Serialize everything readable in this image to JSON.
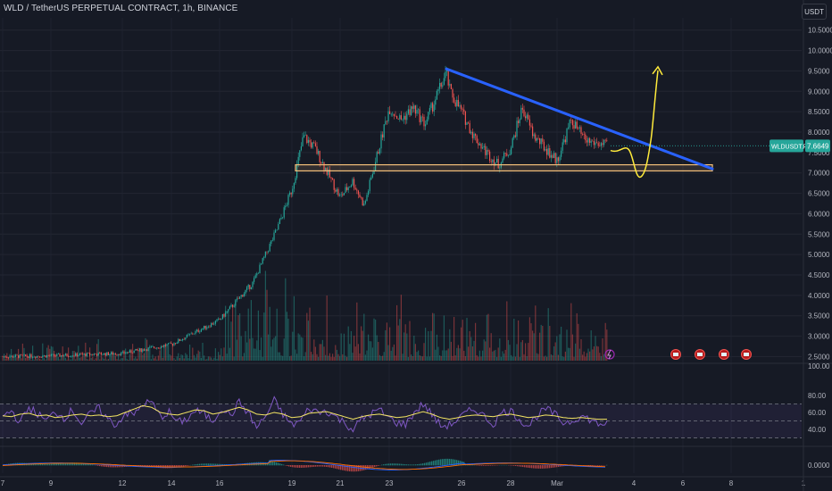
{
  "header": {
    "title": "WLD / TetherUS PERPETUAL CONTRACT, 1h, BINANCE",
    "currency": "USDT"
  },
  "colors": {
    "background": "#161a25",
    "up": "#26a69a",
    "down": "#ef5350",
    "trendline": "#2962ff",
    "support_zone": "#f5c07a",
    "projection": "#ffeb3b",
    "rsi_line": "#7e57c2",
    "rsi_ma": "#f5e663",
    "price_badge": "#26a69a"
  },
  "chart_data": [
    {
      "type": "candlestick",
      "title": "WLD / TetherUS PERPETUAL CONTRACT, 1h, BINANCE",
      "symbol_label": "WLDUSDT.P",
      "last_price": "7.6649",
      "ylim": [
        2.4,
        10.8
      ],
      "y_ticks": [
        "10.5000",
        "10.0000",
        "9.5000",
        "9.0000",
        "8.5000",
        "8.0000",
        "7.5000",
        "7.0000",
        "6.5000",
        "6.0000",
        "5.5000",
        "5.0000",
        "4.5000",
        "4.0000",
        "3.5000",
        "3.0000",
        "2.5000"
      ],
      "x_ticks": [
        "7",
        "9",
        "12",
        "14",
        "16",
        "19",
        "21",
        "23",
        "26",
        "28",
        "Mar",
        "4",
        "6",
        "8",
        "1"
      ],
      "price_path": [
        [
          "7",
          2.5
        ],
        [
          "9",
          2.52
        ],
        [
          "12",
          2.58
        ],
        [
          "14",
          2.8
        ],
        [
          "16",
          3.4
        ],
        [
          "17.5",
          4.3
        ],
        [
          "18.5",
          5.6
        ],
        [
          "19",
          6.6
        ],
        [
          "19.5",
          7.9
        ],
        [
          "20",
          7.6
        ],
        [
          "20.5",
          7.0
        ],
        [
          "21",
          6.4
        ],
        [
          "21.5",
          6.8
        ],
        [
          "22",
          6.2
        ],
        [
          "22.5",
          7.4
        ],
        [
          "23",
          8.6
        ],
        [
          "23.5",
          8.3
        ],
        [
          "24",
          8.6
        ],
        [
          "24.5",
          8.2
        ],
        [
          "25",
          9.45
        ],
        [
          "25.5",
          9.0
        ],
        [
          "26",
          8.5
        ],
        [
          "26.5",
          7.9
        ],
        [
          "27",
          7.5
        ],
        [
          "27.5",
          7.2
        ],
        [
          "28",
          7.6
        ],
        [
          "28.5",
          8.6
        ],
        [
          "29",
          7.9
        ],
        [
          "Mar",
          7.3
        ],
        [
          "1.5",
          8.3
        ],
        [
          "2",
          7.8
        ],
        [
          "2.5",
          7.66
        ]
      ],
      "annotations": {
        "descending_trendline": {
          "from": [
            "25",
            9.55
          ],
          "to": [
            "7.5",
            7.1
          ]
        },
        "support_zone": {
          "from": "19",
          "to": "7.5",
          "y": [
            7.05,
            7.2
          ]
        },
        "projection_target": 9.6
      },
      "volume": {
        "visible": true,
        "color_by_candle": true
      }
    },
    {
      "type": "line",
      "title": "RSI",
      "ylim": [
        20,
        100
      ],
      "y_ticks": [
        "100.00",
        "80.00",
        "60.00",
        "40.00"
      ],
      "bands": [
        70,
        30
      ],
      "midline": 50,
      "series": [
        {
          "values": [
            55,
            62,
            48,
            66,
            58,
            50,
            61,
            54,
            63,
            47,
            58,
            65,
            52,
            45,
            60,
            57,
            70,
            72,
            55,
            60,
            48,
            52,
            62,
            58,
            50,
            66,
            56,
            72,
            60,
            42,
            55,
            74,
            58,
            45,
            50,
            65,
            60,
            62,
            55,
            48,
            40,
            52,
            58,
            63,
            54,
            48,
            46,
            60,
            70,
            58,
            44,
            45,
            52,
            60,
            64,
            55,
            46,
            60,
            62,
            52,
            44,
            56,
            64,
            58,
            48,
            50,
            56,
            52,
            46,
            48
          ]
        },
        {
          "values": [
            56,
            55,
            58,
            59,
            56,
            57,
            54,
            55,
            57,
            58,
            56,
            57,
            55,
            56,
            60,
            64,
            68,
            66,
            60,
            58,
            57,
            60,
            63,
            62,
            58,
            60,
            63,
            66,
            63,
            58,
            57,
            60,
            58,
            54,
            55,
            59,
            60,
            61,
            58,
            55,
            52,
            55,
            57,
            58,
            56,
            54,
            55,
            58,
            61,
            58,
            54,
            52,
            54,
            56,
            57,
            56,
            55,
            57,
            58,
            56,
            54,
            55,
            57,
            56,
            54,
            53,
            54,
            53,
            52,
            52
          ]
        }
      ]
    },
    {
      "type": "histogram",
      "title": "MACD",
      "y_ticks": [
        "0.0000"
      ]
    }
  ]
}
